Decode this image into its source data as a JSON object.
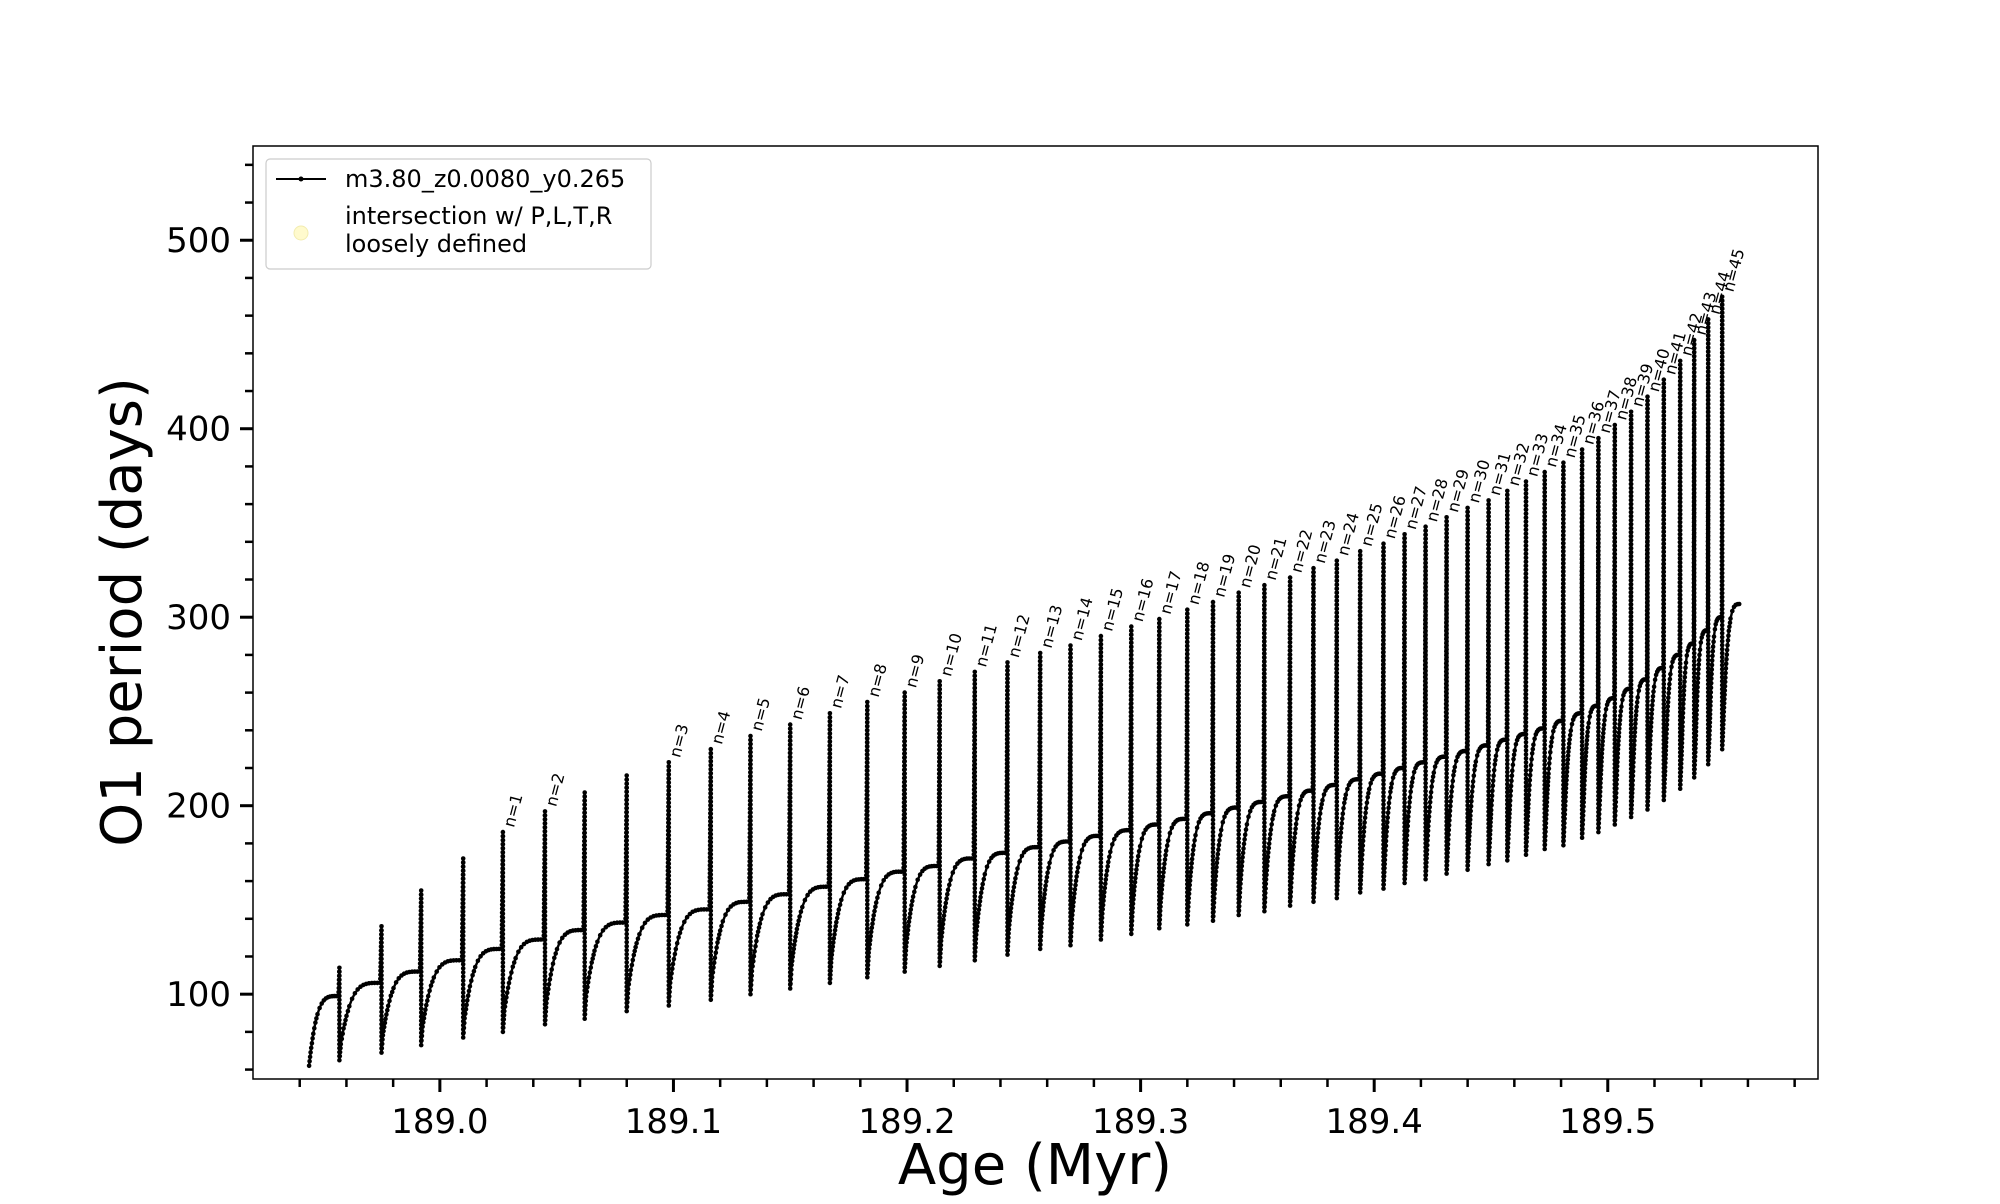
{
  "chart_data": {
    "type": "line",
    "title": "",
    "xlabel": "Age (Myr)",
    "ylabel": "O1 period (days)",
    "xlim": [
      188.92,
      189.59
    ],
    "ylim": [
      55,
      550
    ],
    "x_ticks": [
      189.0,
      189.1,
      189.2,
      189.3,
      189.4,
      189.5
    ],
    "x_tick_labels": [
      "189.0",
      "189.1",
      "189.2",
      "189.3",
      "189.4",
      "189.5"
    ],
    "y_ticks": [
      100,
      200,
      300,
      400,
      500
    ],
    "y_tick_labels": [
      "100",
      "200",
      "300",
      "400",
      "500"
    ],
    "x_minor_step": 0.02,
    "y_minor_step": 20,
    "grid": false,
    "legend_position": "upper-left",
    "legend": [
      {
        "label": "m3.80_z0.0080_y0.265",
        "marker": "line-dot",
        "color": "#000000"
      },
      {
        "label": "intersection w/ P,L,T,R\nloosely defined",
        "marker": "circle",
        "color": "#fffacd"
      }
    ],
    "series": [
      {
        "name": "m3.80_z0.0080_y0.265",
        "color": "#000000",
        "start": {
          "x": 188.944,
          "y": 62
        },
        "pulses": [
          {
            "x": 188.957,
            "peak": 114,
            "base": 99,
            "min": 65,
            "label": ""
          },
          {
            "x": 188.975,
            "peak": 136,
            "base": 106,
            "min": 69,
            "label": ""
          },
          {
            "x": 188.992,
            "peak": 155,
            "base": 112,
            "min": 73,
            "label": ""
          },
          {
            "x": 189.01,
            "peak": 172,
            "base": 118,
            "min": 77,
            "label": ""
          },
          {
            "x": 189.027,
            "peak": 186,
            "base": 124,
            "min": 80,
            "label": "n=1"
          },
          {
            "x": 189.045,
            "peak": 197,
            "base": 129,
            "min": 84,
            "label": "n=2"
          },
          {
            "x": 189.062,
            "peak": 207,
            "base": 134,
            "min": 87,
            "label": ""
          },
          {
            "x": 189.08,
            "peak": 216,
            "base": 138,
            "min": 91,
            "label": ""
          },
          {
            "x": 189.098,
            "peak": 223,
            "base": 142,
            "min": 94,
            "label": "n=3"
          },
          {
            "x": 189.116,
            "peak": 230,
            "base": 145,
            "min": 97,
            "label": "n=4"
          },
          {
            "x": 189.133,
            "peak": 237,
            "base": 149,
            "min": 100,
            "label": "n=5"
          },
          {
            "x": 189.15,
            "peak": 243,
            "base": 153,
            "min": 103,
            "label": "n=6"
          },
          {
            "x": 189.167,
            "peak": 249,
            "base": 157,
            "min": 106,
            "label": "n=7"
          },
          {
            "x": 189.183,
            "peak": 255,
            "base": 161,
            "min": 109,
            "label": "n=8"
          },
          {
            "x": 189.199,
            "peak": 260,
            "base": 165,
            "min": 112,
            "label": "n=9"
          },
          {
            "x": 189.214,
            "peak": 266,
            "base": 168,
            "min": 115,
            "label": "n=10"
          },
          {
            "x": 189.229,
            "peak": 271,
            "base": 172,
            "min": 118,
            "label": "n=11"
          },
          {
            "x": 189.243,
            "peak": 276,
            "base": 175,
            "min": 121,
            "label": "n=12"
          },
          {
            "x": 189.257,
            "peak": 281,
            "base": 178,
            "min": 124,
            "label": "n=13"
          },
          {
            "x": 189.27,
            "peak": 285,
            "base": 181,
            "min": 126,
            "label": "n=14"
          },
          {
            "x": 189.283,
            "peak": 290,
            "base": 184,
            "min": 129,
            "label": "n=15"
          },
          {
            "x": 189.296,
            "peak": 295,
            "base": 187,
            "min": 132,
            "label": "n=16"
          },
          {
            "x": 189.308,
            "peak": 299,
            "base": 190,
            "min": 135,
            "label": "n=17"
          },
          {
            "x": 189.32,
            "peak": 304,
            "base": 193,
            "min": 137,
            "label": "n=18"
          },
          {
            "x": 189.331,
            "peak": 308,
            "base": 196,
            "min": 139,
            "label": "n=19"
          },
          {
            "x": 189.342,
            "peak": 313,
            "base": 199,
            "min": 142,
            "label": "n=20"
          },
          {
            "x": 189.353,
            "peak": 317,
            "base": 202,
            "min": 144,
            "label": "n=21"
          },
          {
            "x": 189.364,
            "peak": 321,
            "base": 205,
            "min": 147,
            "label": "n=22"
          },
          {
            "x": 189.374,
            "peak": 326,
            "base": 208,
            "min": 149,
            "label": "n=23"
          },
          {
            "x": 189.384,
            "peak": 330,
            "base": 211,
            "min": 151,
            "label": "n=24"
          },
          {
            "x": 189.394,
            "peak": 335,
            "base": 214,
            "min": 154,
            "label": "n=25"
          },
          {
            "x": 189.404,
            "peak": 339,
            "base": 217,
            "min": 156,
            "label": "n=26"
          },
          {
            "x": 189.413,
            "peak": 344,
            "base": 220,
            "min": 159,
            "label": "n=27"
          },
          {
            "x": 189.422,
            "peak": 348,
            "base": 223,
            "min": 161,
            "label": "n=28"
          },
          {
            "x": 189.431,
            "peak": 353,
            "base": 226,
            "min": 164,
            "label": "n=29"
          },
          {
            "x": 189.44,
            "peak": 358,
            "base": 229,
            "min": 166,
            "label": "n=30"
          },
          {
            "x": 189.449,
            "peak": 362,
            "base": 232,
            "min": 169,
            "label": "n=31"
          },
          {
            "x": 189.457,
            "peak": 367,
            "base": 235,
            "min": 171,
            "label": "n=32"
          },
          {
            "x": 189.465,
            "peak": 372,
            "base": 238,
            "min": 174,
            "label": "n=33"
          },
          {
            "x": 189.473,
            "peak": 377,
            "base": 241,
            "min": 177,
            "label": "n=34"
          },
          {
            "x": 189.481,
            "peak": 382,
            "base": 245,
            "min": 179,
            "label": "n=35"
          },
          {
            "x": 189.489,
            "peak": 389,
            "base": 249,
            "min": 183,
            "label": "n=36"
          },
          {
            "x": 189.496,
            "peak": 395,
            "base": 253,
            "min": 186,
            "label": "n=37"
          },
          {
            "x": 189.503,
            "peak": 402,
            "base": 257,
            "min": 190,
            "label": "n=38"
          },
          {
            "x": 189.51,
            "peak": 409,
            "base": 262,
            "min": 194,
            "label": "n=39"
          },
          {
            "x": 189.517,
            "peak": 417,
            "base": 267,
            "min": 198,
            "label": "n=40"
          },
          {
            "x": 189.524,
            "peak": 426,
            "base": 273,
            "min": 203,
            "label": "n=41"
          },
          {
            "x": 189.531,
            "peak": 436,
            "base": 280,
            "min": 209,
            "label": "n=42"
          },
          {
            "x": 189.537,
            "peak": 447,
            "base": 286,
            "min": 215,
            "label": "n=43"
          },
          {
            "x": 189.543,
            "peak": 458,
            "base": 293,
            "min": 222,
            "label": "n=44"
          },
          {
            "x": 189.549,
            "peak": 470,
            "base": 300,
            "min": 230,
            "label": "n=45"
          }
        ],
        "end": {
          "x": 189.557,
          "y": 307
        }
      }
    ]
  }
}
